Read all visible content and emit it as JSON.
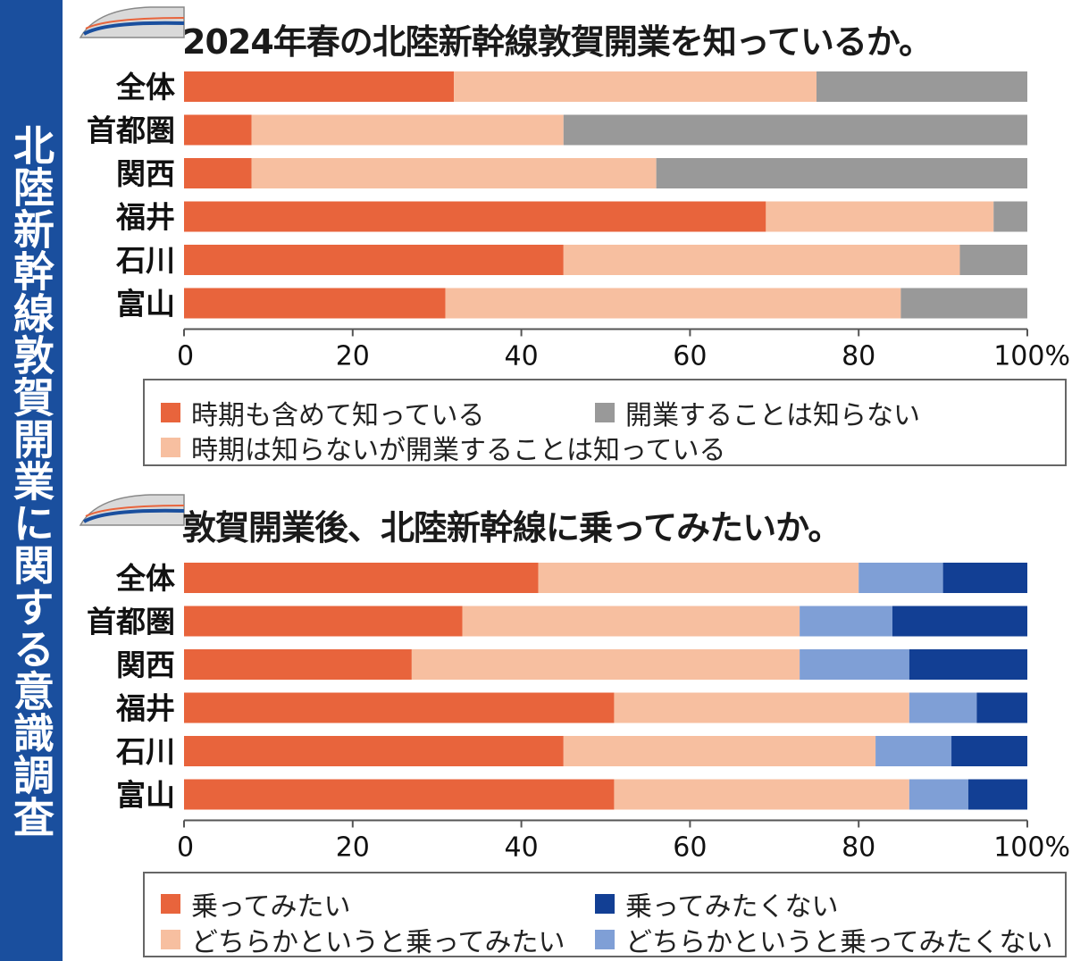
{
  "side_title": "北陸新幹線敦賀開業に関する意識調査",
  "colors": {
    "c1": "#e8643c",
    "c2": "#f7bfa0",
    "c3": "#999999",
    "d1": "#e8643c",
    "d2": "#f7bfa0",
    "d3": "#7f9fd6",
    "d4": "#123f94",
    "side": "#1a4f9e"
  },
  "chart_data": [
    {
      "type": "bar",
      "orientation": "horizontal",
      "stacked": true,
      "title": "2024年春の北陸新幹線敦賀開業を知っているか。",
      "categories": [
        "全体",
        "首都圏",
        "関西",
        "福井",
        "石川",
        "富山"
      ],
      "x_ticks": [
        "0",
        "20",
        "40",
        "60",
        "80",
        "100%"
      ],
      "xlim": [
        0,
        100
      ],
      "series": [
        {
          "name": "時期も含めて知っている",
          "color_key": "c1",
          "values": [
            32,
            8,
            8,
            69,
            45,
            31
          ]
        },
        {
          "name": "時期は知らないが開業することは知っている",
          "color_key": "c2",
          "values": [
            43,
            37,
            48,
            27,
            47,
            54
          ]
        },
        {
          "name": "開業することは知らない",
          "color_key": "c3",
          "values": [
            25,
            55,
            44,
            4,
            8,
            15
          ]
        }
      ],
      "legend": [
        "時期も含めて知っている",
        "開業することは知らない",
        "時期は知らないが開業することは知っている"
      ]
    },
    {
      "type": "bar",
      "orientation": "horizontal",
      "stacked": true,
      "title": "敦賀開業後、北陸新幹線に乗ってみたいか。",
      "categories": [
        "全体",
        "首都圏",
        "関西",
        "福井",
        "石川",
        "富山"
      ],
      "x_ticks": [
        "0",
        "20",
        "40",
        "60",
        "80",
        "100%"
      ],
      "xlim": [
        0,
        100
      ],
      "series": [
        {
          "name": "乗ってみたい",
          "color_key": "d1",
          "values": [
            42,
            33,
            27,
            51,
            45,
            51
          ]
        },
        {
          "name": "どちらかというと乗ってみたい",
          "color_key": "d2",
          "values": [
            38,
            40,
            46,
            35,
            37,
            35
          ]
        },
        {
          "name": "どちらかというと乗ってみたくない",
          "color_key": "d3",
          "values": [
            10,
            11,
            13,
            8,
            9,
            7
          ]
        },
        {
          "name": "乗ってみたくない",
          "color_key": "d4",
          "values": [
            10,
            16,
            14,
            6,
            9,
            7
          ]
        }
      ],
      "legend": [
        "乗ってみたい",
        "乗ってみたくない",
        "どちらかというと乗ってみたい",
        "どちらかというと乗ってみたくない"
      ]
    }
  ]
}
